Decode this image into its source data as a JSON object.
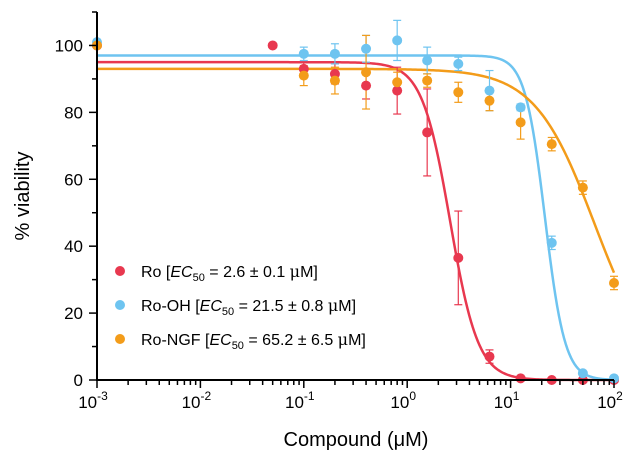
{
  "chart_data": {
    "type": "scatter",
    "xlabel": "Compound (μM)",
    "ylabel": "% viability",
    "xscale": "log",
    "xlim": [
      0.001,
      100
    ],
    "ylim": [
      0,
      110
    ],
    "x_ticks": [
      {
        "value": 0.001,
        "base": "10",
        "exp": "-3"
      },
      {
        "value": 0.01,
        "base": "10",
        "exp": "-2"
      },
      {
        "value": 0.1,
        "base": "10",
        "exp": "-1"
      },
      {
        "value": 1,
        "base": "10",
        "exp": "0"
      },
      {
        "value": 10,
        "base": "10",
        "exp": "1"
      },
      {
        "value": 100,
        "base": "10",
        "exp": "2"
      }
    ],
    "y_ticks": [
      0,
      20,
      40,
      60,
      80,
      100
    ],
    "legend_position": "bottom-left",
    "series": [
      {
        "name": "Ro",
        "legend_text": "Ro [EC50 = 2.6 ± 0.1 μM]",
        "legend_parts": {
          "prefix": "Ro [",
          "ec": "EC",
          "sub": "50",
          "value": " = 2.6 ± 0.1 ",
          "mu": "μ",
          "suffix": "M]"
        },
        "color": "#e8384f",
        "fit": {
          "top": 95,
          "bottom": 0,
          "ec50": 2.6,
          "hill": 3.2
        },
        "points": [
          {
            "x": 0.001,
            "y": 100,
            "err": 0
          },
          {
            "x": 0.05,
            "y": 100,
            "err": 0
          },
          {
            "x": 0.1,
            "y": 93,
            "err": 2
          },
          {
            "x": 0.2,
            "y": 91.5,
            "err": 3
          },
          {
            "x": 0.4,
            "y": 88,
            "err": 4
          },
          {
            "x": 0.8,
            "y": 86.5,
            "err": 7
          },
          {
            "x": 1.56,
            "y": 74,
            "err": 13
          },
          {
            "x": 3.12,
            "y": 36.5,
            "err": 14
          },
          {
            "x": 6.25,
            "y": 7,
            "err": 2
          },
          {
            "x": 12.5,
            "y": 0.5,
            "err": 0
          },
          {
            "x": 25,
            "y": 0,
            "err": 0
          },
          {
            "x": 50,
            "y": 0,
            "err": 0
          },
          {
            "x": 100,
            "y": 0,
            "err": 0
          }
        ]
      },
      {
        "name": "Ro-OH",
        "legend_text": "Ro-OH [EC50 = 21.5 ± 0.8 μM]",
        "legend_parts": {
          "prefix": "Ro-OH [",
          "ec": "EC",
          "sub": "50",
          "value": " = 21.5 ± 0.8 ",
          "mu": "μ",
          "suffix": "M]"
        },
        "color": "#6ec4f0",
        "fit": {
          "top": 97,
          "bottom": 0,
          "ec50": 21.5,
          "hill": 4.5
        },
        "points": [
          {
            "x": 0.001,
            "y": 101,
            "err": 0
          },
          {
            "x": 0.1,
            "y": 97.5,
            "err": 2
          },
          {
            "x": 0.2,
            "y": 97.5,
            "err": 3
          },
          {
            "x": 0.4,
            "y": 99,
            "err": 4
          },
          {
            "x": 0.8,
            "y": 101.5,
            "err": 6
          },
          {
            "x": 1.56,
            "y": 95.5,
            "err": 4
          },
          {
            "x": 3.12,
            "y": 94.5,
            "err": 2
          },
          {
            "x": 6.25,
            "y": 86.5,
            "err": 6
          },
          {
            "x": 12.5,
            "y": 81.5,
            "err": 1
          },
          {
            "x": 25,
            "y": 41,
            "err": 2
          },
          {
            "x": 50,
            "y": 2,
            "err": 0
          },
          {
            "x": 100,
            "y": 0.5,
            "err": 0
          }
        ]
      },
      {
        "name": "Ro-NGF",
        "legend_text": "Ro-NGF [EC50 = 65.2 ± 6.5 μM]",
        "legend_parts": {
          "prefix": "Ro-NGF [",
          "ec": "EC",
          "sub": "50",
          "value": " = 65.2 ± 6.5 ",
          "mu": "μ",
          "suffix": "M]"
        },
        "color": "#f39c1a",
        "fit": {
          "top": 93,
          "bottom": 0,
          "ec50": 65.2,
          "hill": 1.5
        },
        "points": [
          {
            "x": 0.001,
            "y": 100,
            "err": 0
          },
          {
            "x": 0.1,
            "y": 91,
            "err": 3
          },
          {
            "x": 0.2,
            "y": 89.5,
            "err": 4
          },
          {
            "x": 0.4,
            "y": 92,
            "err": 11
          },
          {
            "x": 0.8,
            "y": 89,
            "err": 3
          },
          {
            "x": 1.56,
            "y": 89.5,
            "err": 2
          },
          {
            "x": 3.12,
            "y": 86,
            "err": 3
          },
          {
            "x": 6.25,
            "y": 83.5,
            "err": 3
          },
          {
            "x": 12.5,
            "y": 77,
            "err": 5
          },
          {
            "x": 25,
            "y": 70.5,
            "err": 2
          },
          {
            "x": 50,
            "y": 57.5,
            "err": 2
          },
          {
            "x": 100,
            "y": 29,
            "err": 2
          }
        ]
      }
    ]
  }
}
